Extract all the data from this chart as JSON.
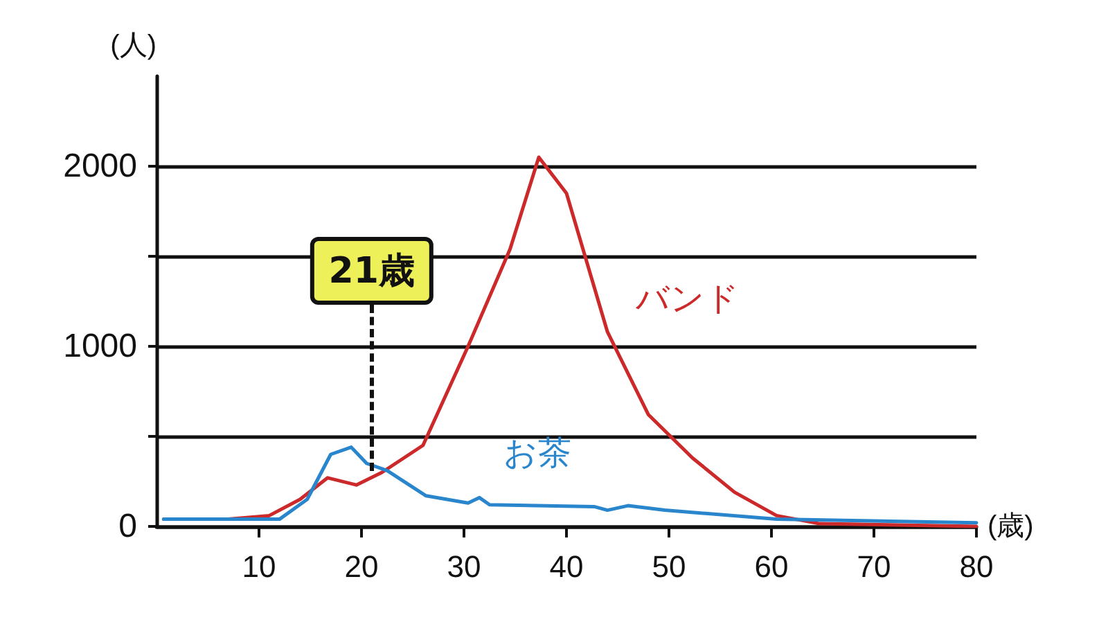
{
  "chart_data": {
    "type": "line",
    "xlabel": "(歳)",
    "ylabel": "(人)",
    "xlim": [
      0,
      80
    ],
    "xticks": [
      10,
      20,
      30,
      40,
      50,
      60,
      70,
      80
    ],
    "ylim": [
      0,
      2500
    ],
    "yticks": [
      0,
      {
        "value": 500,
        "label": null
      },
      1000,
      {
        "value": 1500,
        "label": null
      },
      2000
    ],
    "grid": "y",
    "legend": false,
    "marker": "none",
    "line_style": "solid",
    "series": [
      {
        "name": "バンド",
        "color": "#cc2a2a",
        "x": [
          0.7,
          7,
          11,
          14,
          16.7,
          19.5,
          22,
          26,
          30.4,
          34.5,
          37.3,
          40,
          44,
          48,
          52.3,
          56.4,
          60.5,
          64.7,
          80
        ],
        "values": [
          40,
          40,
          60,
          150,
          270,
          230,
          300,
          450,
          1000,
          1540,
          2050,
          1850,
          1080,
          620,
          380,
          190,
          60,
          15,
          0
        ]
      },
      {
        "name": "お茶",
        "color": "#2a86cc",
        "x": [
          0.7,
          12,
          14.7,
          17,
          19,
          20.5,
          22.5,
          26.3,
          30.4,
          31.5,
          32.5,
          42.7,
          44,
          46,
          49.6,
          60.5,
          80
        ],
        "values": [
          40,
          40,
          150,
          400,
          440,
          350,
          310,
          170,
          130,
          160,
          120,
          110,
          90,
          115,
          90,
          40,
          20
        ]
      }
    ],
    "annotations": [
      {
        "text": "21歳",
        "x": 21,
        "y": 310
      }
    ]
  }
}
